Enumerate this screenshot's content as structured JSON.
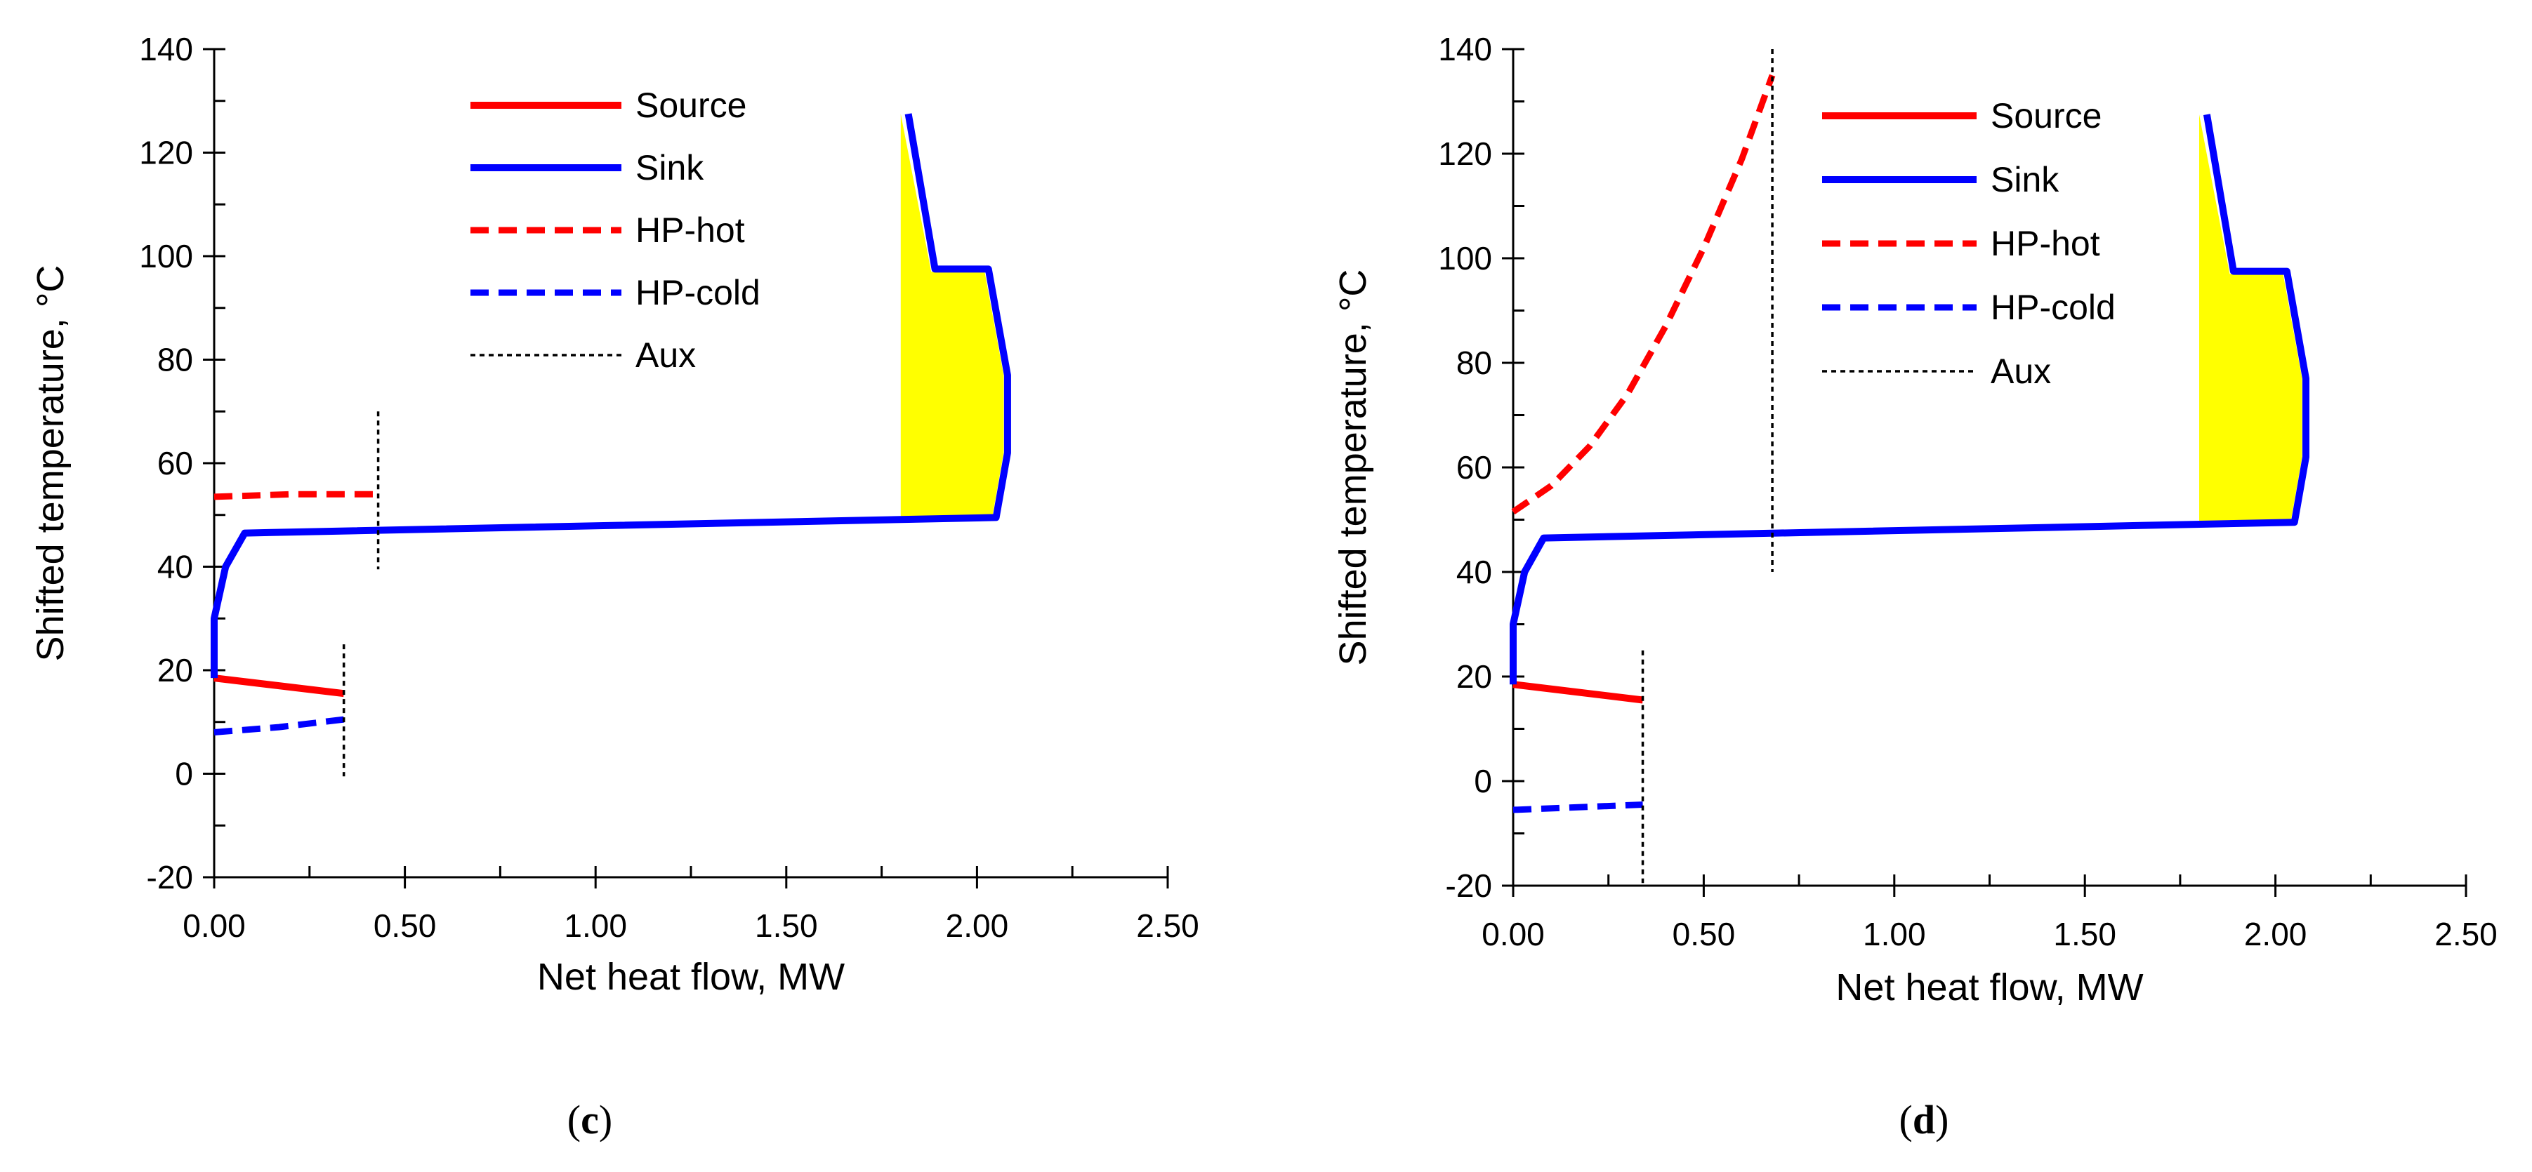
{
  "chart_data": [
    {
      "id": "c",
      "type": "line",
      "caption_open": "(",
      "caption_letter": "c",
      "caption_close": ")",
      "xlabel": "Net heat flow, MW",
      "ylabel": "Shifted  temperature, °C",
      "xlim": [
        0,
        2.5
      ],
      "ylim": [
        -20,
        140
      ],
      "x_ticks": [
        "0.00",
        "0.50",
        "1.00",
        "1.50",
        "2.00",
        "2.50"
      ],
      "x_tick_values": [
        0,
        0.5,
        1.0,
        1.5,
        2.0,
        2.5
      ],
      "y_ticks": [
        "-20",
        "0",
        "20",
        "40",
        "60",
        "80",
        "100",
        "120",
        "140"
      ],
      "y_tick_values": [
        -20,
        0,
        20,
        40,
        60,
        80,
        100,
        120,
        140
      ],
      "legend": [
        {
          "label": "Source",
          "series": "source"
        },
        {
          "label": "Sink",
          "series": "sink"
        },
        {
          "label": "HP-hot",
          "series": "hp_hot"
        },
        {
          "label": "HP-cold",
          "series": "hp_cold"
        },
        {
          "label": "Aux",
          "series": "aux"
        }
      ],
      "series": [
        {
          "name": "Source",
          "key": "source",
          "style": "solid",
          "color": "#ff0000",
          "points": [
            [
              0.0,
              18.5
            ],
            [
              0.34,
              15.5
            ]
          ]
        },
        {
          "name": "Sink",
          "key": "sink",
          "style": "solid",
          "color": "#0000ff",
          "points": [
            [
              1.82,
              127.5
            ],
            [
              1.89,
              97.5
            ],
            [
              2.03,
              97.5
            ],
            [
              2.08,
              77
            ],
            [
              2.08,
              62
            ],
            [
              2.05,
              49.5
            ],
            [
              0.08,
              46.5
            ],
            [
              0.03,
              40
            ],
            [
              0.0,
              30
            ],
            [
              0.0,
              18.5
            ]
          ]
        },
        {
          "name": "HP-hot",
          "key": "hp_hot",
          "style": "dashed",
          "color": "#ff0000",
          "points": [
            [
              0.0,
              53.5
            ],
            [
              0.2,
              54
            ],
            [
              0.43,
              54
            ]
          ]
        },
        {
          "name": "HP-cold",
          "key": "hp_cold",
          "style": "dashed",
          "color": "#0000ff",
          "points": [
            [
              0.0,
              8
            ],
            [
              0.17,
              9
            ],
            [
              0.34,
              10.5
            ]
          ]
        },
        {
          "name": "Aux",
          "key": "aux",
          "style": "dotted",
          "color": "#000000",
          "lines": [
            [
              [
                0.43,
                70
              ],
              [
                0.43,
                39.5
              ]
            ],
            [
              [
                0.34,
                25
              ],
              [
                0.34,
                -0.5
              ]
            ]
          ]
        }
      ],
      "fill_polygon": {
        "color": "#ffff00",
        "points": [
          [
            1.8,
            127.5
          ],
          [
            1.88,
            97
          ],
          [
            2.02,
            97
          ],
          [
            2.07,
            77
          ],
          [
            2.07,
            62
          ],
          [
            2.04,
            49.5
          ],
          [
            1.8,
            49.5
          ]
        ]
      }
    },
    {
      "id": "d",
      "type": "line",
      "caption_open": "(",
      "caption_letter": "d",
      "caption_close": ")",
      "xlabel": "Net heat flow, MW",
      "ylabel": "Shifted  temperature, °C",
      "xlim": [
        0,
        2.5
      ],
      "ylim": [
        -20,
        140
      ],
      "x_ticks": [
        "0.00",
        "0.50",
        "1.00",
        "1.50",
        "2.00",
        "2.50"
      ],
      "x_tick_values": [
        0,
        0.5,
        1.0,
        1.5,
        2.0,
        2.5
      ],
      "y_ticks": [
        "-20",
        "0",
        "20",
        "40",
        "60",
        "80",
        "100",
        "120",
        "140"
      ],
      "y_tick_values": [
        -20,
        0,
        20,
        40,
        60,
        80,
        100,
        120,
        140
      ],
      "legend": [
        {
          "label": "Source",
          "series": "source"
        },
        {
          "label": "Sink",
          "series": "sink"
        },
        {
          "label": "HP-hot",
          "series": "hp_hot"
        },
        {
          "label": "HP-cold",
          "series": "hp_cold"
        },
        {
          "label": "Aux",
          "series": "aux"
        }
      ],
      "series": [
        {
          "name": "Source",
          "key": "source",
          "style": "solid",
          "color": "#ff0000",
          "points": [
            [
              0.0,
              18.5
            ],
            [
              0.34,
              15.5
            ]
          ]
        },
        {
          "name": "Sink",
          "key": "sink",
          "style": "solid",
          "color": "#0000ff",
          "points": [
            [
              1.82,
              127.5
            ],
            [
              1.89,
              97.5
            ],
            [
              2.03,
              97.5
            ],
            [
              2.08,
              77
            ],
            [
              2.08,
              62
            ],
            [
              2.05,
              49.5
            ],
            [
              0.08,
              46.5
            ],
            [
              0.03,
              40
            ],
            [
              0.0,
              30
            ],
            [
              0.0,
              18.5
            ]
          ]
        },
        {
          "name": "HP-hot",
          "key": "hp_hot",
          "style": "dashed",
          "color": "#ff0000",
          "points": [
            [
              0.0,
              51.5
            ],
            [
              0.1,
              56.5
            ],
            [
              0.2,
              64
            ],
            [
              0.3,
              74
            ],
            [
              0.4,
              87
            ],
            [
              0.5,
              102
            ],
            [
              0.6,
              119
            ],
            [
              0.68,
              135
            ]
          ]
        },
        {
          "name": "HP-cold",
          "key": "hp_cold",
          "style": "dashed",
          "color": "#0000ff",
          "points": [
            [
              0.0,
              -5.5
            ],
            [
              0.17,
              -5
            ],
            [
              0.34,
              -4.5
            ]
          ]
        },
        {
          "name": "Aux",
          "key": "aux",
          "style": "dotted",
          "color": "#000000",
          "lines": [
            [
              [
                0.68,
                140
              ],
              [
                0.68,
                40
              ]
            ],
            [
              [
                0.34,
                25
              ],
              [
                0.34,
                -19.5
              ]
            ]
          ]
        }
      ],
      "fill_polygon": {
        "color": "#ffff00",
        "points": [
          [
            1.8,
            127.5
          ],
          [
            1.88,
            97
          ],
          [
            2.02,
            97
          ],
          [
            2.07,
            77
          ],
          [
            2.07,
            62
          ],
          [
            2.04,
            49.5
          ],
          [
            1.8,
            49.5
          ]
        ]
      }
    }
  ]
}
